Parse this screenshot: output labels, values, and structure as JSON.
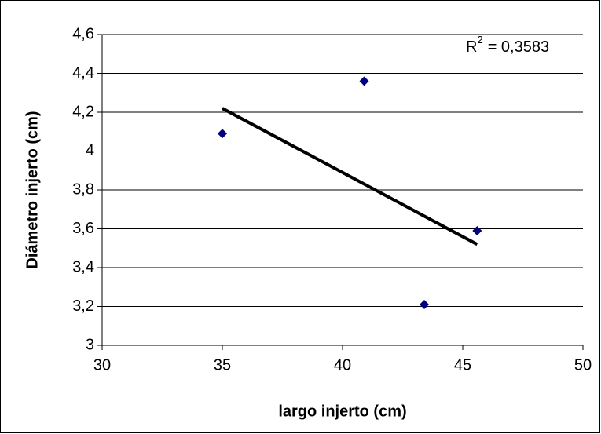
{
  "chart_data": {
    "type": "scatter",
    "x_label": "largo injerto (cm)",
    "y_label": "Diámetro injerto (cm)",
    "annotation": {
      "base": "R",
      "sup": "2",
      "text": "= 0,3583"
    },
    "series": [
      {
        "color": "#000080",
        "x": [
          35.0,
          40.9,
          43.4,
          45.6
        ],
        "values": [
          4.09,
          4.36,
          3.21,
          3.59
        ]
      }
    ],
    "trendline": {
      "color": "#000000",
      "x": [
        35.0,
        45.6
      ],
      "values": [
        4.22,
        3.52
      ]
    },
    "xlim": [
      30,
      50
    ],
    "xticks": [
      30,
      35,
      40,
      45,
      50
    ],
    "ylim": [
      3,
      4.6
    ],
    "yticks": [
      3,
      {
        "value": 3.2,
        "label": "3,2"
      },
      {
        "value": 3.4,
        "label": "3,4"
      },
      {
        "value": 3.6,
        "label": "3,6"
      },
      {
        "value": 3.8,
        "label": "3,8"
      },
      4,
      {
        "value": 4.2,
        "label": "4,2"
      },
      {
        "value": 4.4,
        "label": "4,4"
      },
      {
        "value": 4.6,
        "label": "4,6"
      }
    ],
    "grid": true
  }
}
